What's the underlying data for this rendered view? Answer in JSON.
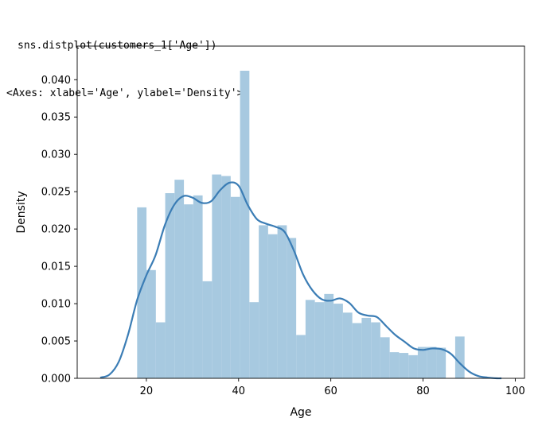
{
  "notebook": {
    "input_code": "sns.distplot(customers_1['Age'])",
    "output_repr": "<Axes: xlabel='Age', ylabel='Density'>"
  },
  "chart_data": {
    "type": "bar",
    "xlabel": "Age",
    "ylabel": "Density",
    "xlim": [
      5,
      102
    ],
    "ylim": [
      0,
      0.0445
    ],
    "xticks": [
      20,
      40,
      60,
      80,
      100
    ],
    "yticks": [
      0.0,
      0.005,
      0.01,
      0.015,
      0.02,
      0.025,
      0.03,
      0.035,
      0.04
    ],
    "ytick_labels": [
      "0.000",
      "0.005",
      "0.010",
      "0.015",
      "0.020",
      "0.025",
      "0.030",
      "0.035",
      "0.040"
    ],
    "grid": false,
    "histogram": {
      "bin_start": 18,
      "bin_end": 89,
      "bin_count": 35,
      "density": [
        0.0229,
        0.0145,
        0.0075,
        0.0248,
        0.0266,
        0.0233,
        0.0245,
        0.013,
        0.0273,
        0.0271,
        0.0243,
        0.0412,
        0.0102,
        0.0205,
        0.0193,
        0.0205,
        0.0188,
        0.0058,
        0.0105,
        0.0102,
        0.0113,
        0.01,
        0.0088,
        0.0074,
        0.0081,
        0.0075,
        0.0055,
        0.0035,
        0.0034,
        0.0031,
        0.0042,
        0.0042,
        0.0041,
        0.0,
        0.0056
      ],
      "color": "#a7c9e0"
    },
    "kde": {
      "color": "#3b7db5",
      "x": [
        10,
        12,
        14,
        16,
        18,
        20,
        22,
        24,
        26,
        28,
        30,
        32,
        34,
        36,
        38,
        40,
        42,
        44,
        46,
        48,
        50,
        52,
        54,
        56,
        58,
        60,
        62,
        64,
        66,
        68,
        70,
        72,
        74,
        76,
        78,
        80,
        82,
        84,
        86,
        88,
        90,
        92,
        94,
        96,
        97
      ],
      "y": [
        0.0001,
        0.0005,
        0.0022,
        0.0058,
        0.0105,
        0.0138,
        0.0165,
        0.0205,
        0.0232,
        0.0244,
        0.0242,
        0.0235,
        0.0237,
        0.0252,
        0.0262,
        0.0258,
        0.0232,
        0.0213,
        0.0207,
        0.0203,
        0.0196,
        0.0171,
        0.0139,
        0.0118,
        0.0106,
        0.0104,
        0.0107,
        0.0101,
        0.0088,
        0.0084,
        0.0082,
        0.007,
        0.0058,
        0.0049,
        0.004,
        0.0038,
        0.004,
        0.0039,
        0.0033,
        0.002,
        0.0009,
        0.0003,
        0.0001,
        0.0,
        0.0
      ]
    }
  }
}
